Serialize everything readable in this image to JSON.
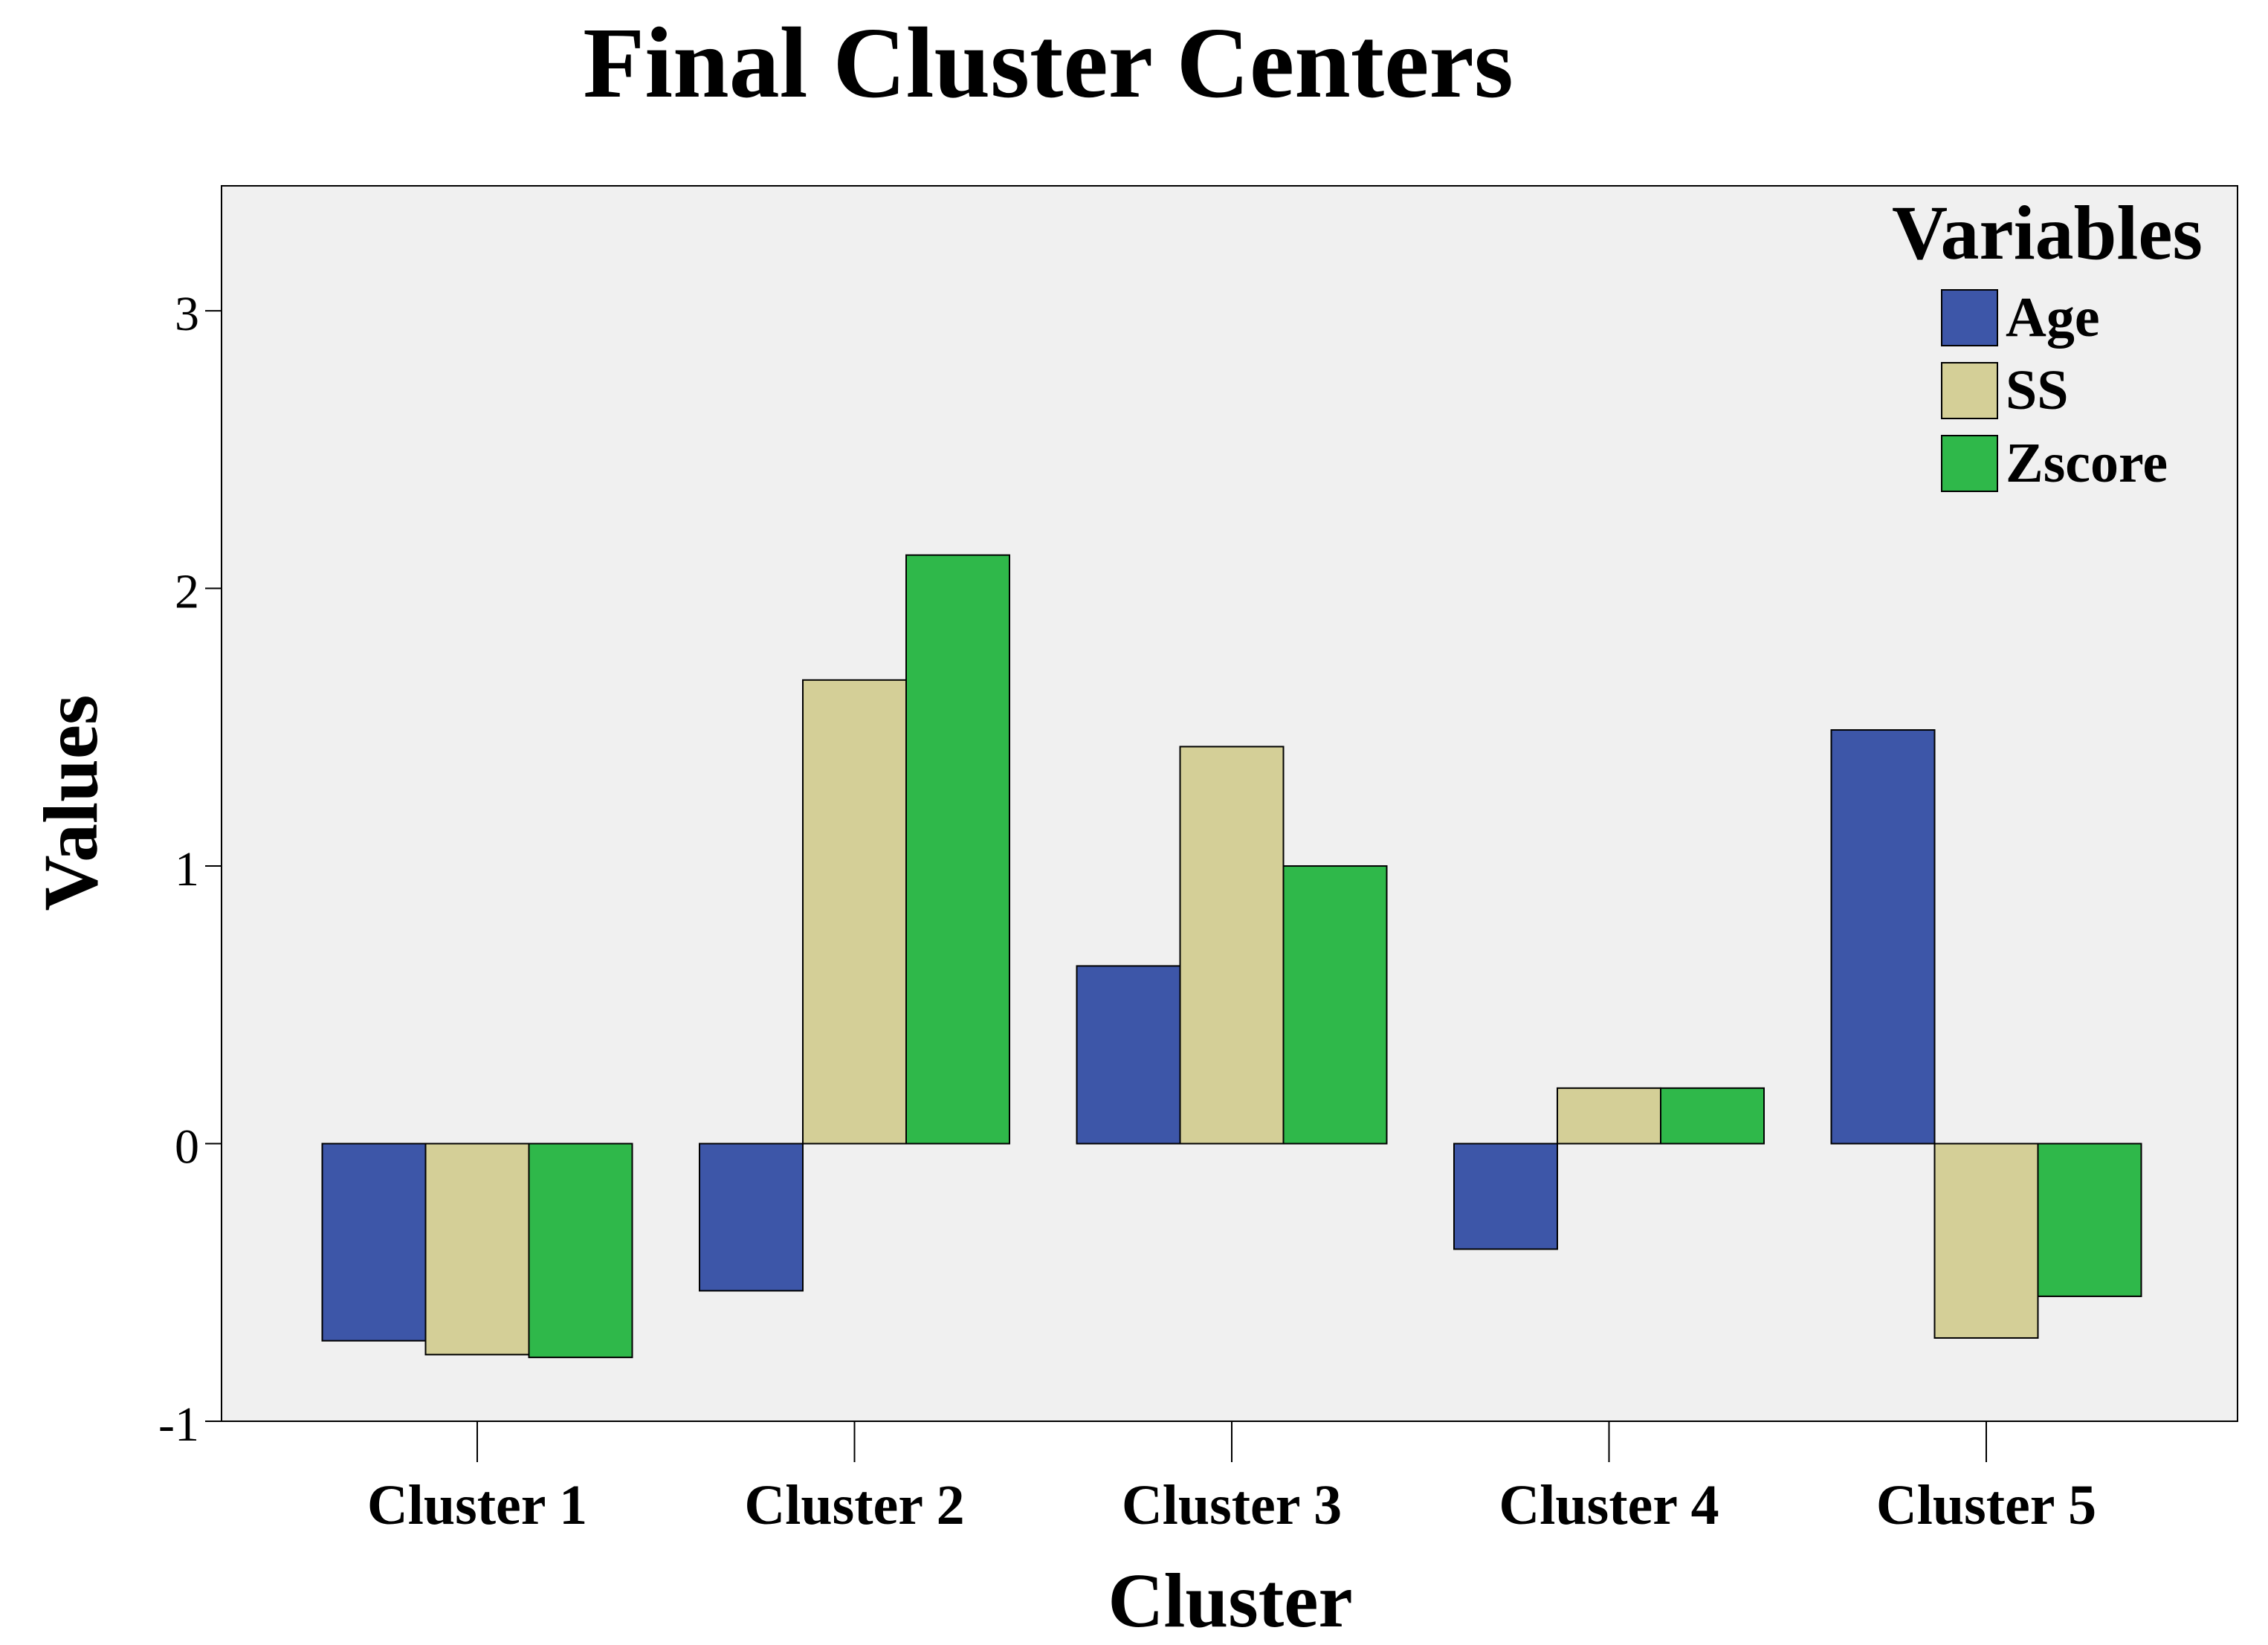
{
  "chart_data": {
    "type": "bar",
    "title": "Final Cluster Centers",
    "xlabel": "Cluster",
    "ylabel": "Values",
    "categories": [
      "Cluster 1",
      "Cluster 2",
      "Cluster 3",
      "Cluster 4",
      "Cluster 5"
    ],
    "series": [
      {
        "name": "Age",
        "color": "#3d56a8",
        "values": [
          -0.71,
          -0.53,
          0.64,
          -0.38,
          1.49
        ]
      },
      {
        "name": "SS",
        "color": "#d4cf97",
        "values": [
          -0.76,
          1.67,
          1.43,
          0.2,
          -0.7
        ]
      },
      {
        "name": "Zscore",
        "color": "#2fb84a",
        "values": [
          -0.77,
          2.12,
          1.0,
          0.2,
          -0.55
        ]
      }
    ],
    "ylim": [
      -1,
      3.45
    ],
    "yticks": [
      -1,
      0,
      1,
      2,
      3
    ],
    "legend": {
      "title": "Variables",
      "position": "top-right"
    },
    "grid": false,
    "plot_background": "#f0f0f0"
  }
}
